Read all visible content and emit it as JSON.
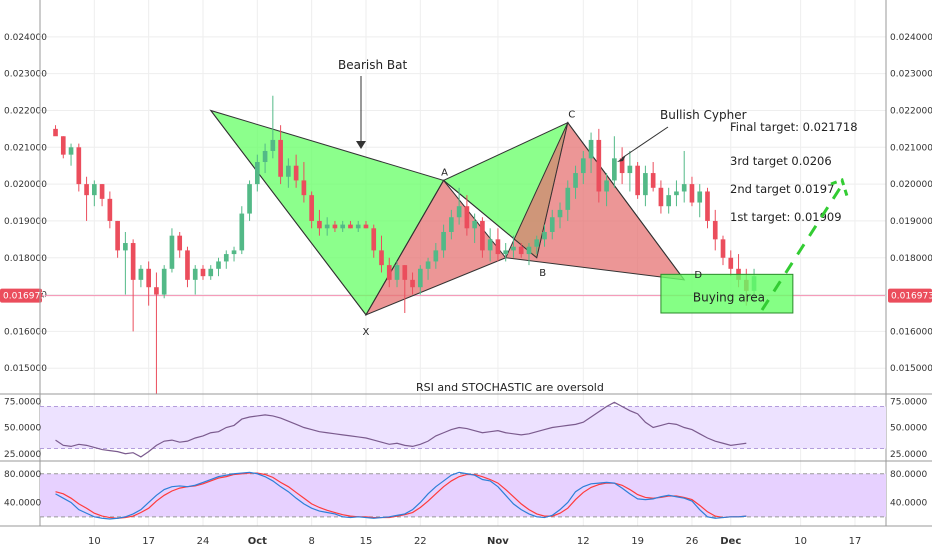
{
  "colors": {
    "up": "#53b987",
    "down": "#eb4d5c",
    "harmonic_green": "#66ff66",
    "harmonic_red": "#e57373",
    "buy_zone": "#66ff66",
    "rsi_line": "#7b5b8e",
    "rsi_band": "#ede2ff",
    "stoch_band": "#e7d1ff",
    "stoch_k": "#2d7fd8",
    "stoch_d": "#ff3b3b",
    "grid": "#eeeeee",
    "price_line": "#f48fb1",
    "price_tag": "#eb4d5c",
    "dashed_target": "#33cc33"
  },
  "chart_data": [
    {
      "type": "candlestick",
      "title": "",
      "ylim": [
        0.0143,
        0.025
      ],
      "y_ticks": [
        "0.024000",
        "0.023000",
        "0.022000",
        "0.021000",
        "0.020000",
        "0.019000",
        "0.018000",
        "0.017000",
        "0.016000",
        "0.015000"
      ],
      "x_ticks": [
        {
          "label": "10",
          "day": 10
        },
        {
          "label": "17",
          "day": 17
        },
        {
          "label": "24",
          "day": 24
        },
        {
          "label": "Oct",
          "day": 31
        },
        {
          "label": "8",
          "day": 38
        },
        {
          "label": "15",
          "day": 45
        },
        {
          "label": "22",
          "day": 52
        },
        {
          "label": "Nov",
          "day": 62
        },
        {
          "label": "12",
          "day": 73
        },
        {
          "label": "19",
          "day": 80
        },
        {
          "label": "26",
          "day": 87
        },
        {
          "label": "Dec",
          "day": 92
        },
        {
          "label": "10",
          "day": 101
        },
        {
          "label": "17",
          "day": 108
        }
      ],
      "current_price": "0.016973",
      "candles": [
        [
          0.0215,
          0.0216,
          0.0214,
          0.0213
        ],
        [
          0.0213,
          0.0213,
          0.0207,
          0.0208
        ],
        [
          0.0208,
          0.0211,
          0.0205,
          0.021
        ],
        [
          0.021,
          0.0211,
          0.0198,
          0.02
        ],
        [
          0.02,
          0.0202,
          0.019,
          0.0197
        ],
        [
          0.0197,
          0.0201,
          0.0194,
          0.02
        ],
        [
          0.02,
          0.02,
          0.0194,
          0.0196
        ],
        [
          0.0196,
          0.0198,
          0.0188,
          0.019
        ],
        [
          0.019,
          0.019,
          0.018,
          0.0182
        ],
        [
          0.0182,
          0.0187,
          0.017,
          0.0184
        ],
        [
          0.0184,
          0.0185,
          0.016,
          0.0174
        ],
        [
          0.0174,
          0.0178,
          0.0172,
          0.0177
        ],
        [
          0.0177,
          0.0179,
          0.0167,
          0.0172
        ],
        [
          0.0172,
          0.0176,
          0.0143,
          0.017
        ],
        [
          0.017,
          0.0178,
          0.0169,
          0.0177
        ],
        [
          0.0177,
          0.0188,
          0.0176,
          0.0186
        ],
        [
          0.0186,
          0.0187,
          0.018,
          0.0182
        ],
        [
          0.0182,
          0.0183,
          0.0172,
          0.0174
        ],
        [
          0.0174,
          0.0178,
          0.017,
          0.0177
        ],
        [
          0.0177,
          0.0178,
          0.0174,
          0.0175
        ],
        [
          0.0175,
          0.0178,
          0.0174,
          0.0177
        ],
        [
          0.0177,
          0.018,
          0.0175,
          0.0179
        ],
        [
          0.0179,
          0.0182,
          0.0177,
          0.0181
        ],
        [
          0.0181,
          0.0183,
          0.0179,
          0.0182
        ],
        [
          0.0182,
          0.0194,
          0.0181,
          0.0192
        ],
        [
          0.0192,
          0.0201,
          0.019,
          0.02
        ],
        [
          0.02,
          0.0208,
          0.0198,
          0.0206
        ],
        [
          0.0206,
          0.0211,
          0.0203,
          0.0209
        ],
        [
          0.0209,
          0.0224,
          0.0207,
          0.0212
        ],
        [
          0.0212,
          0.0216,
          0.02,
          0.0202
        ],
        [
          0.0202,
          0.0207,
          0.0199,
          0.0205
        ],
        [
          0.0205,
          0.0208,
          0.0199,
          0.0201
        ],
        [
          0.0201,
          0.0206,
          0.0195,
          0.0197
        ],
        [
          0.0197,
          0.0198,
          0.0188,
          0.019
        ],
        [
          0.019,
          0.0193,
          0.0186,
          0.0188
        ],
        [
          0.0188,
          0.0191,
          0.0186,
          0.0189
        ],
        [
          0.0189,
          0.019,
          0.0187,
          0.0188
        ],
        [
          0.0188,
          0.019,
          0.0187,
          0.0189
        ],
        [
          0.0189,
          0.019,
          0.0188,
          0.0188
        ],
        [
          0.0188,
          0.019,
          0.0187,
          0.0189
        ],
        [
          0.0189,
          0.019,
          0.0188,
          0.0188
        ],
        [
          0.0188,
          0.0189,
          0.018,
          0.0182
        ],
        [
          0.0182,
          0.0186,
          0.0176,
          0.0178
        ],
        [
          0.0178,
          0.018,
          0.0172,
          0.0174
        ],
        [
          0.0174,
          0.0179,
          0.0172,
          0.0178
        ],
        [
          0.0178,
          0.0178,
          0.0165,
          0.0174
        ],
        [
          0.0174,
          0.0176,
          0.017,
          0.0172
        ],
        [
          0.0172,
          0.0178,
          0.017,
          0.0177
        ],
        [
          0.0177,
          0.018,
          0.0174,
          0.0179
        ],
        [
          0.0179,
          0.0184,
          0.0177,
          0.0182
        ],
        [
          0.0182,
          0.0189,
          0.018,
          0.0187
        ],
        [
          0.0187,
          0.0193,
          0.0185,
          0.0191
        ],
        [
          0.0191,
          0.0199,
          0.0189,
          0.0194
        ],
        [
          0.0194,
          0.0197,
          0.0186,
          0.0188
        ],
        [
          0.0188,
          0.0192,
          0.0184,
          0.019
        ],
        [
          0.019,
          0.0191,
          0.018,
          0.0182
        ],
        [
          0.0182,
          0.0188,
          0.0179,
          0.0185
        ],
        [
          0.0185,
          0.0188,
          0.0179,
          0.0181
        ],
        [
          0.0181,
          0.0184,
          0.0179,
          0.0182
        ],
        [
          0.0182,
          0.0186,
          0.018,
          0.0183
        ],
        [
          0.0183,
          0.0184,
          0.018,
          0.0181
        ],
        [
          0.0181,
          0.0184,
          0.0178,
          0.0183
        ],
        [
          0.0183,
          0.0186,
          0.0181,
          0.0185
        ],
        [
          0.0185,
          0.0189,
          0.0183,
          0.0187
        ],
        [
          0.0187,
          0.0193,
          0.0185,
          0.0191
        ],
        [
          0.0191,
          0.0195,
          0.0188,
          0.0193
        ],
        [
          0.0193,
          0.0201,
          0.019,
          0.0199
        ],
        [
          0.0199,
          0.0205,
          0.0196,
          0.0203
        ],
        [
          0.0203,
          0.0209,
          0.02,
          0.0207
        ],
        [
          0.0207,
          0.0214,
          0.0203,
          0.0212
        ],
        [
          0.0212,
          0.0215,
          0.0195,
          0.0198
        ],
        [
          0.0198,
          0.0203,
          0.0194,
          0.0201
        ],
        [
          0.0201,
          0.0213,
          0.0199,
          0.0207
        ],
        [
          0.0207,
          0.021,
          0.02,
          0.0203
        ],
        [
          0.0203,
          0.0209,
          0.0198,
          0.0205
        ],
        [
          0.0205,
          0.0206,
          0.0196,
          0.0197
        ],
        [
          0.0197,
          0.0205,
          0.0194,
          0.0203
        ],
        [
          0.0203,
          0.0206,
          0.0198,
          0.0199
        ],
        [
          0.0199,
          0.0201,
          0.0192,
          0.0194
        ],
        [
          0.0194,
          0.0199,
          0.0192,
          0.0197
        ],
        [
          0.0197,
          0.0201,
          0.0194,
          0.0198
        ],
        [
          0.0198,
          0.0209,
          0.0195,
          0.02
        ],
        [
          0.02,
          0.0202,
          0.0194,
          0.0195
        ],
        [
          0.0195,
          0.02,
          0.0191,
          0.0198
        ],
        [
          0.0198,
          0.0199,
          0.0188,
          0.019
        ],
        [
          0.019,
          0.0193,
          0.0182,
          0.0185
        ],
        [
          0.0185,
          0.0186,
          0.0178,
          0.018
        ],
        [
          0.018,
          0.0182,
          0.0175,
          0.0177
        ],
        [
          0.0177,
          0.0181,
          0.0172,
          0.0174
        ],
        [
          0.0174,
          0.0177,
          0.0167,
          0.0171
        ],
        [
          0.0171,
          0.0177,
          0.0168,
          0.0175
        ]
      ],
      "patterns": {
        "bearish_bat": {
          "label": "Bearish Bat",
          "points": {
            "X": [
              25,
              0.022
            ],
            "A": [
              45,
              0.01645
            ],
            "B": [
              55,
              0.0201
            ],
            "C": [
              67,
              0.018
            ],
            "D": [
              55,
              0.0201
            ]
          }
        },
        "bullish_cypher": {
          "label": "Bullish Cypher",
          "points": {
            "X": [
              45,
              0.01645
            ],
            "A": [
              55,
              0.0201
            ],
            "B": [
              63,
              0.018
            ],
            "C": [
              71,
              0.02167
            ],
            "D": [
              86,
              0.0174
            ]
          }
        },
        "point_labels": [
          "X",
          "A",
          "B",
          "C",
          "D"
        ],
        "buying_area": {
          "label": "Buying area",
          "day_from": 83,
          "day_to": 100,
          "price_top": 0.01755,
          "price_bottom": 0.0165
        }
      },
      "targets": [
        "Final target: 0.021718",
        "3rd target 0.0206",
        "2nd target 0.0197",
        "1st target: 0.01909"
      ]
    },
    {
      "type": "line",
      "name": "RSI",
      "ylim": [
        20,
        80
      ],
      "y_ticks": [
        "75.0000",
        "50.0000",
        "25.0000"
      ],
      "band": [
        30,
        70
      ],
      "annotation": "RSI and STOCHASTIC are oversold",
      "values": [
        38,
        33,
        32,
        34,
        33,
        31,
        29,
        28,
        27,
        25,
        26,
        22,
        27,
        33,
        37,
        38,
        36,
        37,
        40,
        42,
        45,
        46,
        50,
        52,
        58,
        60,
        61,
        62,
        61,
        59,
        56,
        53,
        50,
        48,
        46,
        45,
        44,
        43,
        42,
        41,
        40,
        38,
        36,
        34,
        35,
        33,
        32,
        34,
        37,
        42,
        45,
        48,
        50,
        49,
        47,
        45,
        46,
        47,
        45,
        44,
        43,
        44,
        46,
        48,
        50,
        51,
        52,
        53,
        55,
        60,
        65,
        70,
        74,
        70,
        66,
        63,
        55,
        50,
        52,
        54,
        53,
        50,
        48,
        44,
        40,
        37,
        35,
        33,
        34,
        35
      ]
    },
    {
      "type": "line",
      "name": "STOCHASTIC",
      "ylim": [
        10,
        95
      ],
      "y_ticks": [
        "80.0000",
        "40.0000"
      ],
      "band": [
        20,
        80
      ],
      "k": [
        52,
        46,
        40,
        30,
        25,
        20,
        18,
        17,
        18,
        20,
        24,
        30,
        40,
        50,
        58,
        62,
        63,
        62,
        64,
        68,
        72,
        76,
        78,
        80,
        81,
        82,
        80,
        76,
        70,
        62,
        55,
        46,
        38,
        32,
        28,
        26,
        24,
        20,
        19,
        20,
        19,
        18,
        19,
        20,
        22,
        24,
        30,
        40,
        52,
        62,
        70,
        78,
        82,
        80,
        78,
        72,
        70,
        62,
        50,
        38,
        30,
        24,
        20,
        19,
        22,
        30,
        40,
        55,
        62,
        66,
        67,
        68,
        67,
        60,
        52,
        45,
        44,
        45,
        48,
        50,
        48,
        46,
        42,
        30,
        20,
        18,
        19,
        20,
        20,
        21
      ],
      "d": [
        55,
        52,
        46,
        38,
        32,
        25,
        21,
        19,
        18,
        19,
        21,
        26,
        32,
        42,
        50,
        56,
        60,
        62,
        63,
        66,
        70,
        74,
        76,
        79,
        80,
        81,
        81,
        79,
        75,
        68,
        62,
        54,
        46,
        38,
        33,
        29,
        26,
        23,
        21,
        20,
        20,
        19,
        19,
        19,
        21,
        23,
        26,
        33,
        42,
        52,
        62,
        70,
        76,
        79,
        79,
        76,
        72,
        67,
        58,
        48,
        38,
        30,
        24,
        21,
        21,
        25,
        32,
        44,
        54,
        61,
        65,
        67,
        67,
        64,
        58,
        51,
        47,
        46,
        47,
        49,
        49,
        47,
        44,
        36,
        27,
        21,
        19,
        20,
        20,
        21
      ]
    }
  ]
}
